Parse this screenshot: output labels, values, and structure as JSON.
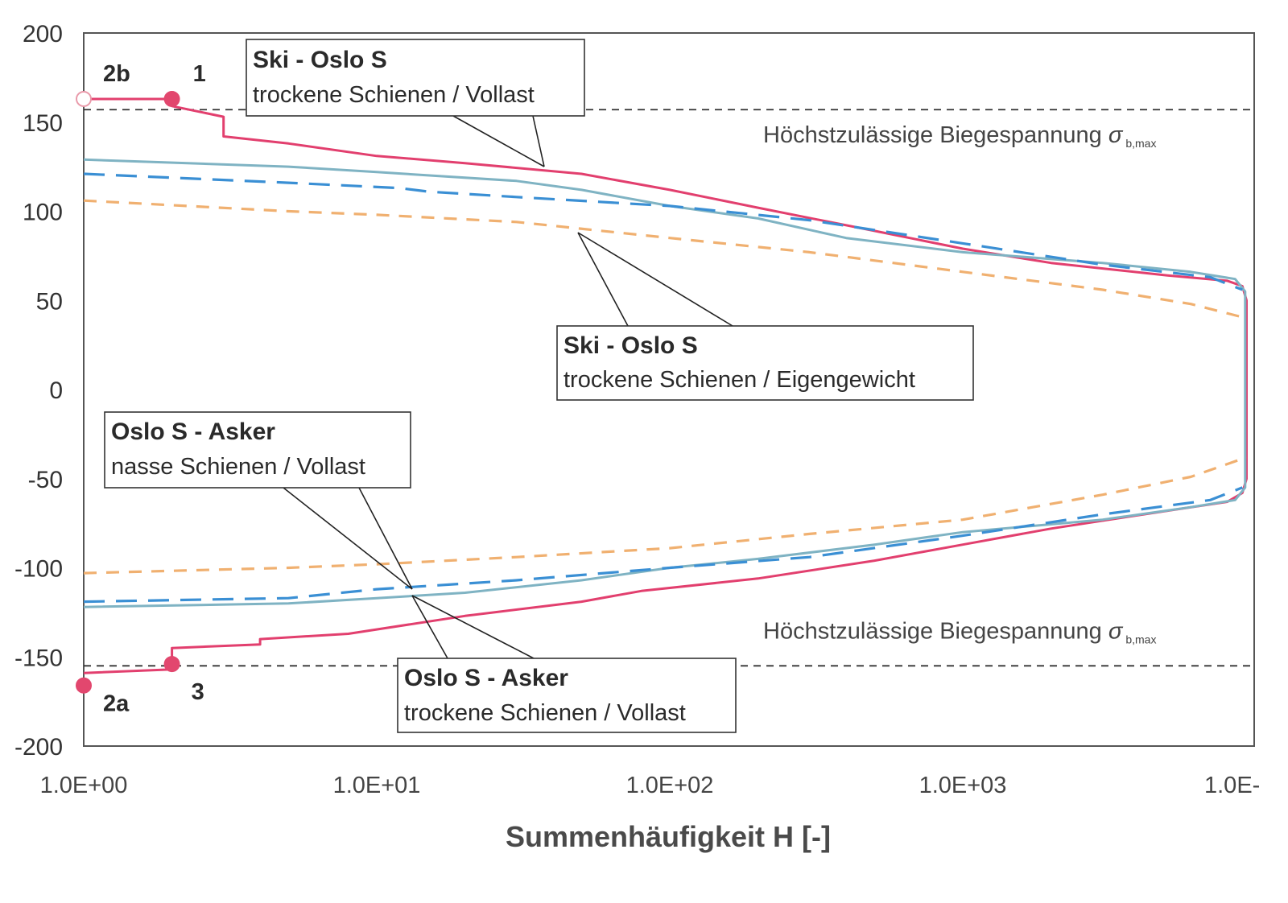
{
  "chart_data": {
    "type": "line",
    "xlabel": "Summenhäufigkeit H [-]",
    "xscale": "log",
    "xlim": [
      1,
      10000
    ],
    "ylim": [
      -200,
      200
    ],
    "grid": false,
    "x_ticks": [
      "1.0E+00",
      "1.0E+01",
      "1.0E+02",
      "1.0E+03",
      "1.0E-"
    ],
    "y_ticks": [
      "200",
      "150",
      "100",
      "50",
      "0",
      "-50",
      "-100",
      "-150",
      "-200"
    ],
    "limit_lines": [
      {
        "y": 157,
        "label": "Höchstzulässige Biegespannung",
        "symbol": "σ",
        "subscript": "b,max"
      },
      {
        "y": -155,
        "label": "Höchstzulässige Biegespannung",
        "symbol": "σ",
        "subscript": "b,max"
      }
    ],
    "series": [
      {
        "id": "ski_oslo_dry_full",
        "color": "#e23f6e",
        "dash": "solid",
        "upper": [
          [
            1,
            163
          ],
          [
            2,
            163
          ],
          [
            2,
            159
          ],
          [
            3,
            153
          ],
          [
            3,
            142
          ],
          [
            5,
            138
          ],
          [
            10,
            131
          ],
          [
            20,
            127
          ],
          [
            50,
            121
          ],
          [
            100,
            112
          ],
          [
            200,
            102
          ],
          [
            500,
            89
          ],
          [
            1000,
            79
          ],
          [
            2000,
            71
          ],
          [
            5000,
            64
          ],
          [
            8000,
            61
          ],
          [
            9000,
            58
          ],
          [
            9300,
            50
          ],
          [
            9300,
            0
          ]
        ],
        "lower": [
          [
            1,
            -159
          ],
          [
            2,
            -157
          ],
          [
            2,
            -145
          ],
          [
            4,
            -143
          ],
          [
            4,
            -140
          ],
          [
            8,
            -137
          ],
          [
            20,
            -127
          ],
          [
            50,
            -119
          ],
          [
            80,
            -113
          ],
          [
            200,
            -106
          ],
          [
            500,
            -96
          ],
          [
            1000,
            -87
          ],
          [
            2000,
            -78
          ],
          [
            5000,
            -68
          ],
          [
            8000,
            -63
          ],
          [
            9000,
            -58
          ],
          [
            9300,
            -50
          ],
          [
            9300,
            0
          ]
        ]
      },
      {
        "id": "oslo_asker_wet_full",
        "color": "#7fb3c3",
        "dash": "solid",
        "upper": [
          [
            1,
            129
          ],
          [
            5,
            125
          ],
          [
            10,
            122
          ],
          [
            30,
            117
          ],
          [
            50,
            112
          ],
          [
            100,
            103
          ],
          [
            200,
            96
          ],
          [
            400,
            85
          ],
          [
            1000,
            77
          ],
          [
            3000,
            71
          ],
          [
            6000,
            66
          ],
          [
            8500,
            62
          ],
          [
            9200,
            55
          ],
          [
            9200,
            0
          ]
        ],
        "lower": [
          [
            1,
            -122
          ],
          [
            5,
            -120
          ],
          [
            10,
            -117
          ],
          [
            20,
            -114
          ],
          [
            50,
            -107
          ],
          [
            100,
            -100
          ],
          [
            200,
            -95
          ],
          [
            500,
            -87
          ],
          [
            1000,
            -80
          ],
          [
            3000,
            -73
          ],
          [
            6000,
            -66
          ],
          [
            8500,
            -62
          ],
          [
            9200,
            -55
          ],
          [
            9200,
            0
          ]
        ]
      },
      {
        "id": "oslo_asker_dry_full",
        "color": "#3a8fd4",
        "dash": "dashed",
        "upper": [
          [
            1,
            121
          ],
          [
            5,
            116
          ],
          [
            12,
            113
          ],
          [
            15,
            111
          ],
          [
            30,
            108
          ],
          [
            100,
            103
          ],
          [
            300,
            95
          ],
          [
            1000,
            82
          ],
          [
            3000,
            70
          ],
          [
            7000,
            63
          ],
          [
            9000,
            56
          ]
        ],
        "lower": [
          [
            1,
            -119
          ],
          [
            5,
            -117
          ],
          [
            10,
            -112
          ],
          [
            30,
            -107
          ],
          [
            100,
            -100
          ],
          [
            300,
            -94
          ],
          [
            1000,
            -82
          ],
          [
            3000,
            -70
          ],
          [
            7000,
            -62
          ],
          [
            9000,
            -55
          ]
        ]
      },
      {
        "id": "ski_oslo_dry_self",
        "color": "#f0b070",
        "dash": "dashed",
        "upper": [
          [
            1,
            106
          ],
          [
            5,
            100
          ],
          [
            10,
            98
          ],
          [
            30,
            94
          ],
          [
            100,
            85
          ],
          [
            300,
            77
          ],
          [
            1000,
            66
          ],
          [
            3000,
            56
          ],
          [
            6000,
            48
          ],
          [
            9300,
            40
          ]
        ],
        "lower": [
          [
            1,
            -103
          ],
          [
            5,
            -100
          ],
          [
            10,
            -98
          ],
          [
            30,
            -94
          ],
          [
            100,
            -89
          ],
          [
            300,
            -81
          ],
          [
            1000,
            -73
          ],
          [
            3000,
            -59
          ],
          [
            6000,
            -49
          ],
          [
            9300,
            -38
          ]
        ]
      }
    ],
    "annotations": [
      {
        "title": "Ski - Oslo S",
        "subtitle": "trockene Schienen / Vollast"
      },
      {
        "title": "Ski - Oslo S",
        "subtitle": "trockene Schienen / Eigengewicht"
      },
      {
        "title": "Oslo S - Asker",
        "subtitle": "nasse Schienen / Vollast"
      },
      {
        "title": "Oslo S - Asker",
        "subtitle": "trockene Schienen / Vollast"
      }
    ],
    "points": [
      {
        "label": "2b",
        "x": 1,
        "y": 163,
        "filled": false
      },
      {
        "label": "1",
        "x": 2,
        "y": 163,
        "filled": true
      },
      {
        "label": "2a",
        "x": 1,
        "y": -166,
        "filled": true
      },
      {
        "label": "3",
        "x": 2,
        "y": -154,
        "filled": true
      }
    ]
  }
}
